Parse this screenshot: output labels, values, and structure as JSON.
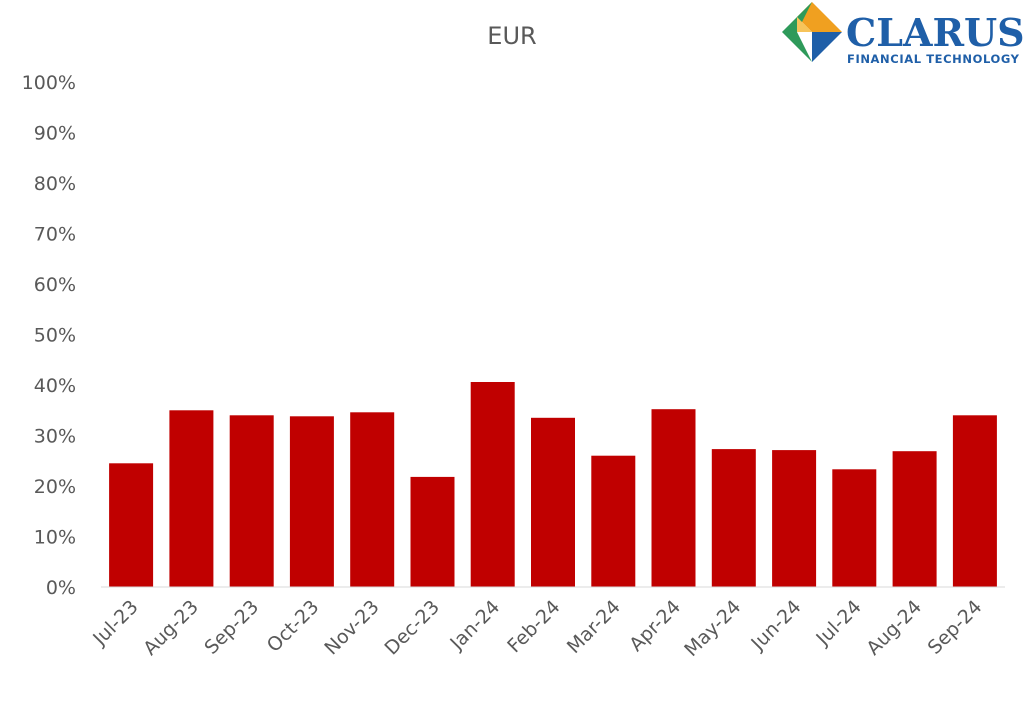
{
  "chart_data": {
    "type": "bar",
    "title": "EUR",
    "categories": [
      "Jul-23",
      "Aug-23",
      "Sep-23",
      "Oct-23",
      "Nov-23",
      "Dec-23",
      "Jan-24",
      "Feb-24",
      "Mar-24",
      "Apr-24",
      "May-24",
      "Jun-24",
      "Jul-24",
      "Aug-24",
      "Sep-24"
    ],
    "series": [
      {
        "values": [
          24.5,
          35.0,
          34.0,
          33.8,
          34.6,
          21.8,
          40.6,
          33.5,
          26.0,
          35.2,
          27.3,
          27.1,
          23.3,
          26.9,
          34.0
        ]
      }
    ],
    "ylim": [
      0,
      100
    ],
    "yticks": [
      "0%",
      "10%",
      "20%",
      "30%",
      "40%",
      "50%",
      "60%",
      "70%",
      "80%",
      "90%",
      "100%"
    ],
    "xlabel": "",
    "ylabel": "",
    "grid": false,
    "legend": "none",
    "bar_color": "#c00000"
  },
  "logo": {
    "name": "CLARUS",
    "tagline": "FINANCIAL TECHNOLOGY",
    "colors": {
      "orange": "#f0a020",
      "green": "#2e9a5a",
      "blue": "#1f5fa8"
    }
  }
}
